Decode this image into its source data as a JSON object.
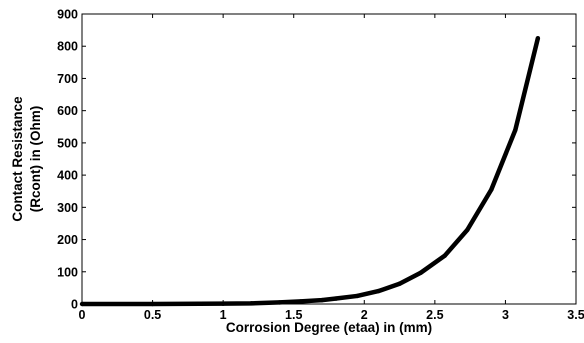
{
  "chart_data": {
    "type": "line",
    "title": "",
    "xlabel": "Corrosion Degree (etaa) in (mm)",
    "ylabel_lines": [
      "Contact Resistance",
      "(Rcont) in (Ohm)"
    ],
    "xlim": [
      0,
      3.5
    ],
    "ylim": [
      0,
      900
    ],
    "xticks": [
      0,
      0.5,
      1,
      1.5,
      2,
      2.5,
      3,
      3.5
    ],
    "xtick_labels": [
      "0",
      "0.5",
      "1",
      "1.5",
      "2",
      "2.5",
      "3",
      "3.5"
    ],
    "yticks": [
      0,
      100,
      200,
      300,
      400,
      500,
      600,
      700,
      800,
      900
    ],
    "ytick_labels": [
      "0",
      "100",
      "200",
      "300",
      "400",
      "500",
      "600",
      "700",
      "800",
      "900"
    ],
    "grid": false,
    "legend": false,
    "series": [
      {
        "color": "#000000",
        "x": [
          0,
          0.5,
          1.0,
          1.2,
          1.4,
          1.55,
          1.7,
          1.8,
          1.95,
          2.1,
          2.25,
          2.4,
          2.57,
          2.73,
          2.9,
          3.07,
          3.23
        ],
        "y": [
          0,
          0,
          1,
          2,
          5,
          8,
          12,
          17,
          25,
          40,
          63,
          97,
          150,
          230,
          355,
          540,
          825
        ]
      }
    ]
  }
}
